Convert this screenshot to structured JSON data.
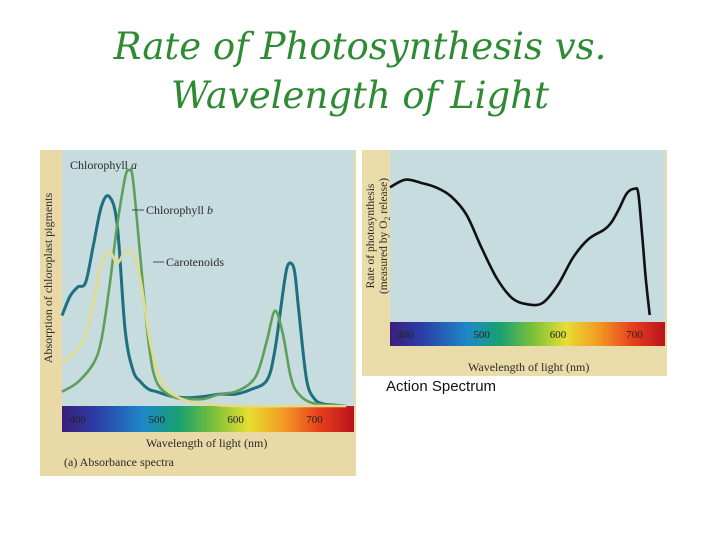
{
  "title": {
    "line1": "Rate of Photosynthesis vs.",
    "line2": "Wavelength of Light"
  },
  "colors": {
    "title": "#2e8b34",
    "chlorophyll_a": "#1e6f80",
    "chlorophyll_b": "#5f9f5a",
    "carotenoids": "#e2dc8a",
    "action": "#111111",
    "plot_background": "#c6dcdf"
  },
  "chart_data": [
    {
      "type": "line",
      "ylabel": "Absorption of chloroplast pigments",
      "xlabel": "Wavelength of light (nm)",
      "caption": "(a) Absorbance spectra",
      "xlim": [
        380,
        750
      ],
      "ylim": [
        0,
        1
      ],
      "ticks": [
        400,
        500,
        600,
        700
      ],
      "spectrum_bar": true,
      "series": [
        {
          "name": "Chlorophyll a",
          "name_plain": "Chlorophyll ",
          "name_italic": "a",
          "color_key": "chlorophyll_a",
          "x": [
            380,
            390,
            400,
            410,
            420,
            430,
            440,
            450,
            460,
            470,
            480,
            490,
            500,
            520,
            540,
            560,
            580,
            600,
            620,
            640,
            650,
            660,
            665,
            670,
            675,
            680,
            690,
            700,
            710,
            720,
            740
          ],
          "values": [
            0.38,
            0.46,
            0.5,
            0.52,
            0.68,
            0.84,
            0.88,
            0.76,
            0.32,
            0.15,
            0.1,
            0.07,
            0.06,
            0.04,
            0.035,
            0.04,
            0.05,
            0.05,
            0.07,
            0.11,
            0.24,
            0.48,
            0.58,
            0.6,
            0.56,
            0.4,
            0.11,
            0.03,
            0.01,
            0.005,
            0.0
          ]
        },
        {
          "name": "Chlorophyll b",
          "name_plain": "Chlorophyll ",
          "name_italic": "b",
          "color_key": "chlorophyll_b",
          "x": [
            380,
            400,
            420,
            430,
            440,
            450,
            460,
            465,
            470,
            480,
            490,
            500,
            520,
            540,
            560,
            580,
            600,
            620,
            630,
            640,
            650,
            660,
            670,
            680,
            700,
            740
          ],
          "values": [
            0.06,
            0.1,
            0.18,
            0.28,
            0.5,
            0.76,
            0.96,
            0.99,
            0.95,
            0.6,
            0.26,
            0.1,
            0.04,
            0.03,
            0.03,
            0.05,
            0.06,
            0.1,
            0.16,
            0.28,
            0.4,
            0.3,
            0.12,
            0.05,
            0.01,
            0.0
          ]
        },
        {
          "name": "Carotenoids",
          "name_plain": "Carotenoids",
          "name_italic": "",
          "color_key": "carotenoids",
          "x": [
            380,
            400,
            410,
            420,
            430,
            440,
            450,
            460,
            470,
            480,
            490,
            500,
            510,
            520,
            540,
            560,
            600,
            700,
            740
          ],
          "values": [
            0.18,
            0.24,
            0.3,
            0.44,
            0.6,
            0.65,
            0.6,
            0.65,
            0.64,
            0.52,
            0.3,
            0.15,
            0.08,
            0.05,
            0.02,
            0.01,
            0.0,
            0.0,
            0.0
          ]
        }
      ]
    },
    {
      "type": "line",
      "ylabel_line1": "Rate of photosynthesis",
      "ylabel_line2_pre": "(measured by O",
      "ylabel_sub": "2",
      "ylabel_line2_post": " release)",
      "xlabel": "Wavelength of light (nm)",
      "caption": "Action Spectrum",
      "xlim": [
        380,
        740
      ],
      "ylim": [
        0,
        1
      ],
      "ticks": [
        400,
        500,
        600,
        700
      ],
      "spectrum_bar": true,
      "series": [
        {
          "name": "",
          "color_key": "action",
          "x": [
            380,
            400,
            420,
            440,
            460,
            480,
            500,
            520,
            540,
            560,
            580,
            600,
            620,
            640,
            660,
            670,
            680,
            690,
            700,
            705,
            710,
            715,
            720
          ],
          "values": [
            0.86,
            0.91,
            0.89,
            0.86,
            0.8,
            0.68,
            0.46,
            0.26,
            0.13,
            0.09,
            0.1,
            0.22,
            0.4,
            0.52,
            0.58,
            0.63,
            0.72,
            0.82,
            0.85,
            0.82,
            0.55,
            0.25,
            0.02
          ]
        }
      ]
    }
  ]
}
